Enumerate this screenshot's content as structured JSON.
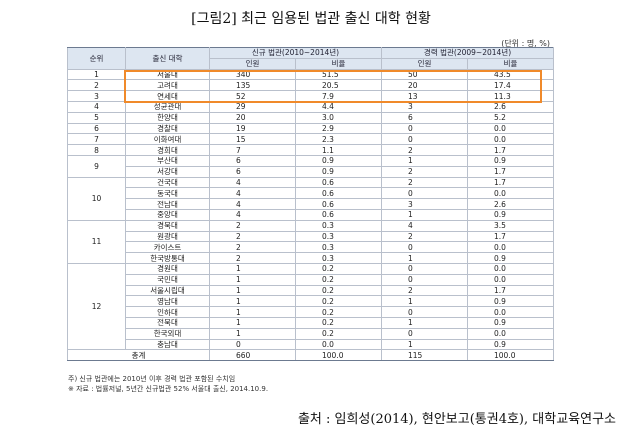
{
  "title": "[그림2] 최근 임용된 법관 출신 대학 현황",
  "unit": "(단위 : 명, %)",
  "header": {
    "rank": "순위",
    "university": "출신 대학",
    "new_judges": "신규 법관(2010~2014년)",
    "career_judges": "경력 법관(2009~2014년)",
    "count": "인원",
    "ratio": "비율"
  },
  "groups": [
    {
      "rank": "1",
      "rows": [
        {
          "uni": "서울대",
          "n1": "340",
          "r1": "51.5",
          "n2": "50",
          "r2": "43.5"
        }
      ]
    },
    {
      "rank": "2",
      "rows": [
        {
          "uni": "고려대",
          "n1": "135",
          "r1": "20.5",
          "n2": "20",
          "r2": "17.4"
        }
      ]
    },
    {
      "rank": "3",
      "rows": [
        {
          "uni": "연세대",
          "n1": "52",
          "r1": "7.9",
          "n2": "13",
          "r2": "11.3"
        }
      ]
    },
    {
      "rank": "4",
      "rows": [
        {
          "uni": "성균관대",
          "n1": "29",
          "r1": "4.4",
          "n2": "3",
          "r2": "2.6"
        }
      ]
    },
    {
      "rank": "5",
      "rows": [
        {
          "uni": "한양대",
          "n1": "20",
          "r1": "3.0",
          "n2": "6",
          "r2": "5.2"
        }
      ]
    },
    {
      "rank": "6",
      "rows": [
        {
          "uni": "경찰대",
          "n1": "19",
          "r1": "2.9",
          "n2": "0",
          "r2": "0.0"
        }
      ]
    },
    {
      "rank": "7",
      "rows": [
        {
          "uni": "이화여대",
          "n1": "15",
          "r1": "2.3",
          "n2": "0",
          "r2": "0.0"
        }
      ]
    },
    {
      "rank": "8",
      "rows": [
        {
          "uni": "경희대",
          "n1": "7",
          "r1": "1.1",
          "n2": "2",
          "r2": "1.7"
        }
      ]
    },
    {
      "rank": "9",
      "rows": [
        {
          "uni": "부산대",
          "n1": "6",
          "r1": "0.9",
          "n2": "1",
          "r2": "0.9"
        },
        {
          "uni": "서강대",
          "n1": "6",
          "r1": "0.9",
          "n2": "2",
          "r2": "1.7"
        }
      ]
    },
    {
      "rank": "10",
      "rows": [
        {
          "uni": "건국대",
          "n1": "4",
          "r1": "0.6",
          "n2": "2",
          "r2": "1.7"
        },
        {
          "uni": "동국대",
          "n1": "4",
          "r1": "0.6",
          "n2": "0",
          "r2": "0.0"
        },
        {
          "uni": "전남대",
          "n1": "4",
          "r1": "0.6",
          "n2": "3",
          "r2": "2.6"
        },
        {
          "uni": "중앙대",
          "n1": "4",
          "r1": "0.6",
          "n2": "1",
          "r2": "0.9"
        }
      ]
    },
    {
      "rank": "11",
      "rows": [
        {
          "uni": "경북대",
          "n1": "2",
          "r1": "0.3",
          "n2": "4",
          "r2": "3.5"
        },
        {
          "uni": "원광대",
          "n1": "2",
          "r1": "0.3",
          "n2": "2",
          "r2": "1.7"
        },
        {
          "uni": "카이스트",
          "n1": "2",
          "r1": "0.3",
          "n2": "0",
          "r2": "0.0"
        },
        {
          "uni": "한국방통대",
          "n1": "2",
          "r1": "0.3",
          "n2": "1",
          "r2": "0.9"
        }
      ]
    },
    {
      "rank": "12",
      "rows": [
        {
          "uni": "경원대",
          "n1": "1",
          "r1": "0.2",
          "n2": "0",
          "r2": "0.0"
        },
        {
          "uni": "국민대",
          "n1": "1",
          "r1": "0.2",
          "n2": "0",
          "r2": "0.0"
        },
        {
          "uni": "서울시립대",
          "n1": "1",
          "r1": "0.2",
          "n2": "2",
          "r2": "1.7"
        },
        {
          "uni": "영남대",
          "n1": "1",
          "r1": "0.2",
          "n2": "1",
          "r2": "0.9"
        },
        {
          "uni": "인하대",
          "n1": "1",
          "r1": "0.2",
          "n2": "0",
          "r2": "0.0"
        },
        {
          "uni": "전북대",
          "n1": "1",
          "r1": "0.2",
          "n2": "1",
          "r2": "0.9"
        },
        {
          "uni": "한국외대",
          "n1": "1",
          "r1": "0.2",
          "n2": "0",
          "r2": "0.0"
        },
        {
          "uni": "충남대",
          "n1": "0",
          "r1": "0.0",
          "n2": "1",
          "r2": "0.9"
        }
      ]
    }
  ],
  "total": {
    "label": "총계",
    "n1": "660",
    "r1": "100.0",
    "n2": "115",
    "r2": "100.0"
  },
  "notes": [
    "주) 신규 법관에는 2010년 이후 경력 법관 포함된 수치임",
    "※ 자료 : 법률저널, 5년간 신규법관 52% 서울대 출신, 2014.10.9."
  ],
  "source": "출처 : 임희성(2014), 현안보고(통권4호), 대학교육연구소",
  "colors": {
    "highlight": "#f08a2a",
    "header_bg": "#dde6f1"
  }
}
